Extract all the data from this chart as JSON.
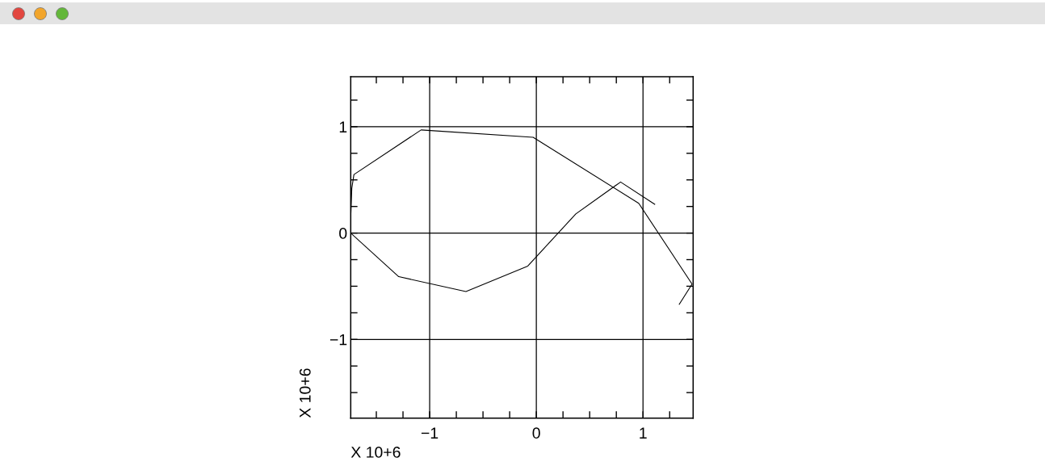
{
  "chart_data": {
    "type": "line",
    "xlabel": "X 10+6",
    "ylabel": "X 10+6",
    "x": [
      1.34,
      1.46,
      0.96,
      -0.03,
      -1.08,
      -1.71,
      -1.73,
      -1.74,
      -1.74,
      -1.29,
      -0.66,
      -0.08,
      0.37,
      0.79,
      1.11
    ],
    "series": [
      {
        "color": "#000000",
        "values": [
          -0.67,
          -0.48,
          0.28,
          0.9,
          0.97,
          0.55,
          0.42,
          0.15,
          0.0,
          -0.41,
          -0.55,
          -0.31,
          0.18,
          0.48,
          0.27
        ]
      }
    ],
    "xlim": [
      -1.74,
      1.47
    ],
    "ylim": [
      -1.74,
      1.47
    ],
    "xticks": [
      {
        "value": -1.5,
        "label": null
      },
      {
        "value": -1.25,
        "label": null
      },
      {
        "value": -1,
        "label": "−1"
      },
      {
        "value": -0.75,
        "label": null
      },
      {
        "value": -0.5,
        "label": null
      },
      {
        "value": -0.25,
        "label": null
      },
      0,
      {
        "value": 0.25,
        "label": null
      },
      {
        "value": 0.5,
        "label": null
      },
      {
        "value": 0.75,
        "label": null
      },
      1,
      {
        "value": 1.25,
        "label": null
      }
    ],
    "yticks": [
      {
        "value": -1.5,
        "label": null
      },
      {
        "value": -1.25,
        "label": null
      },
      {
        "value": -1,
        "label": "−1"
      },
      {
        "value": -0.75,
        "label": null
      },
      {
        "value": -0.5,
        "label": null
      },
      {
        "value": -0.25,
        "label": null
      },
      0,
      {
        "value": 0.25,
        "label": null
      },
      {
        "value": 0.5,
        "label": null
      },
      {
        "value": 0.75,
        "label": null
      },
      1,
      {
        "value": 1.25,
        "label": null
      }
    ],
    "grid": true,
    "line_style": "solid"
  }
}
